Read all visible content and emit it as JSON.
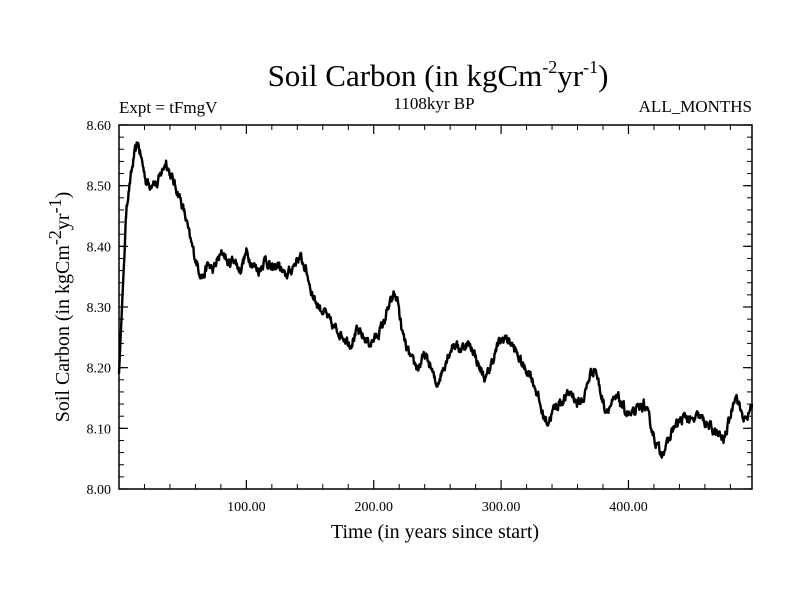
{
  "chart_data": {
    "type": "line",
    "title": "Soil Carbon (in kgCm",
    "title_sup1": "-2",
    "title_mid": "yr",
    "title_sup2": "-1",
    "title_end": ")",
    "experiment": "Expt = tFmgV",
    "period": "1108kyr BP",
    "months": "ALL_MONTHS",
    "xlabel": "Time (in years since start)",
    "ylabel": "Soil Carbon (in kgCm",
    "ylabel_sup1": "-2",
    "ylabel_mid": "yr",
    "ylabel_sup2": "-1",
    "ylabel_end": ")",
    "xlim": [
      0,
      497
    ],
    "ylim": [
      8.0,
      8.6
    ],
    "xticks": [
      100,
      200,
      300,
      400
    ],
    "xtick_labels": [
      "100.00",
      "200.00",
      "300.00",
      "400.00"
    ],
    "yticks": [
      8.0,
      8.1,
      8.2,
      8.3,
      8.4,
      8.5,
      8.6
    ],
    "ytick_labels": [
      "8.00",
      "8.10",
      "8.20",
      "8.30",
      "8.40",
      "8.50",
      "8.60"
    ],
    "series": [
      {
        "name": "Soil Carbon",
        "x": [
          0,
          3,
          6,
          9,
          12,
          15,
          18,
          21,
          24,
          27,
          30,
          33,
          37,
          40,
          44,
          48,
          52,
          56,
          60,
          63,
          66,
          70,
          74,
          78,
          82,
          86,
          90,
          95,
          100,
          105,
          110,
          115,
          120,
          125,
          130,
          135,
          140,
          143,
          147,
          152,
          157,
          162,
          167,
          172,
          177,
          182,
          187,
          192,
          197,
          202,
          207,
          212,
          216,
          219,
          222,
          226,
          230,
          235,
          240,
          245,
          249,
          253,
          258,
          263,
          268,
          273,
          278,
          283,
          288,
          293,
          298,
          303,
          308,
          313,
          318,
          323,
          328,
          333,
          337,
          341,
          345,
          350,
          355,
          360,
          365,
          370,
          374,
          378,
          382,
          387,
          392,
          397,
          402,
          407,
          412,
          417,
          421,
          425,
          430,
          435,
          440,
          445,
          450,
          455,
          460,
          465,
          470,
          475,
          480,
          484,
          488,
          492,
          497
        ],
        "y": [
          8.19,
          8.33,
          8.47,
          8.51,
          8.55,
          8.57,
          8.54,
          8.51,
          8.5,
          8.51,
          8.5,
          8.52,
          8.54,
          8.52,
          8.5,
          8.48,
          8.45,
          8.41,
          8.38,
          8.36,
          8.35,
          8.37,
          8.36,
          8.38,
          8.39,
          8.37,
          8.38,
          8.36,
          8.39,
          8.37,
          8.36,
          8.38,
          8.36,
          8.37,
          8.35,
          8.36,
          8.38,
          8.38,
          8.36,
          8.32,
          8.3,
          8.29,
          8.27,
          8.26,
          8.25,
          8.24,
          8.26,
          8.25,
          8.24,
          8.25,
          8.27,
          8.3,
          8.32,
          8.31,
          8.26,
          8.23,
          8.21,
          8.2,
          8.22,
          8.2,
          8.17,
          8.19,
          8.22,
          8.24,
          8.23,
          8.24,
          8.23,
          8.2,
          8.18,
          8.21,
          8.24,
          8.25,
          8.24,
          8.22,
          8.2,
          8.19,
          8.16,
          8.12,
          8.11,
          8.13,
          8.14,
          8.15,
          8.16,
          8.14,
          8.15,
          8.19,
          8.2,
          8.16,
          8.13,
          8.14,
          8.15,
          8.13,
          8.12,
          8.13,
          8.14,
          8.11,
          8.08,
          8.06,
          8.07,
          8.1,
          8.11,
          8.12,
          8.11,
          8.12,
          8.11,
          8.1,
          8.09,
          8.08,
          8.12,
          8.16,
          8.13,
          8.11,
          8.14
        ]
      }
    ]
  }
}
